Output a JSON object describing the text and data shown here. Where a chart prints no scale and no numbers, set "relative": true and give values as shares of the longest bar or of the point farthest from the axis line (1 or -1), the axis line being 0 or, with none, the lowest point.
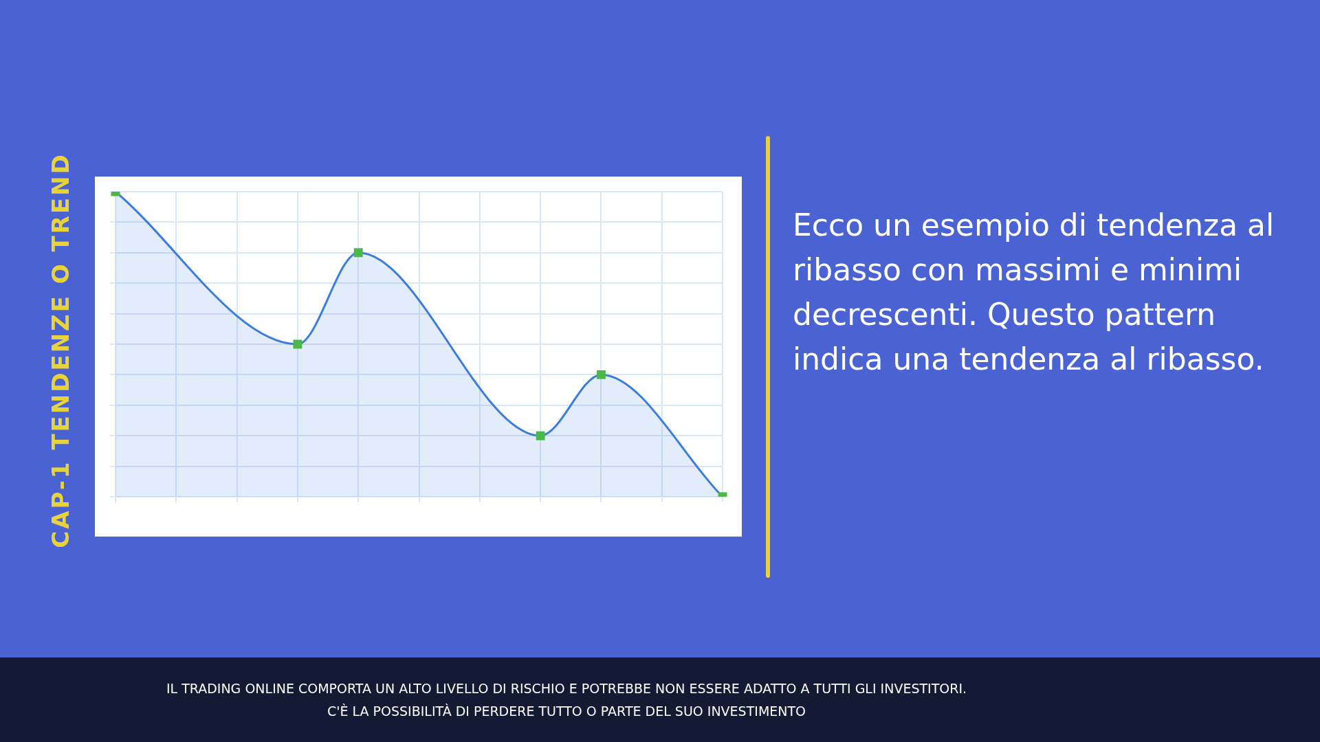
{
  "chart_data": {
    "type": "area",
    "title": "CAP-1 TENDENZE O TREND",
    "categories": [
      null,
      null,
      null,
      null,
      null,
      null,
      null,
      null,
      null,
      null,
      null
    ],
    "series": [
      {
        "color": "#3b7ddd",
        "values": [
          1,
          null,
          null,
          0.5,
          0.8,
          null,
          null,
          0.2,
          0.4,
          null,
          0
        ]
      }
    ],
    "relative": true,
    "grid": true,
    "marker": "square",
    "annotations": [
      "Ecco un esempio di tendenza al ribasso con massimi e minimi decrescenti. Questo pattern indica una tendenza al ribasso.",
      "IL TRADING ONLINE COMPORTA UN ALTO LIVELLO DI RISCHIO E POTREBBE NON ESSERE ADATTO A TUTTI GLI INVESTITORI.",
      "C'È LA POSSIBILITÀ DI PERDERE TUTTO O PARTE DEL SUO INVESTIMENTO"
    ]
  }
}
